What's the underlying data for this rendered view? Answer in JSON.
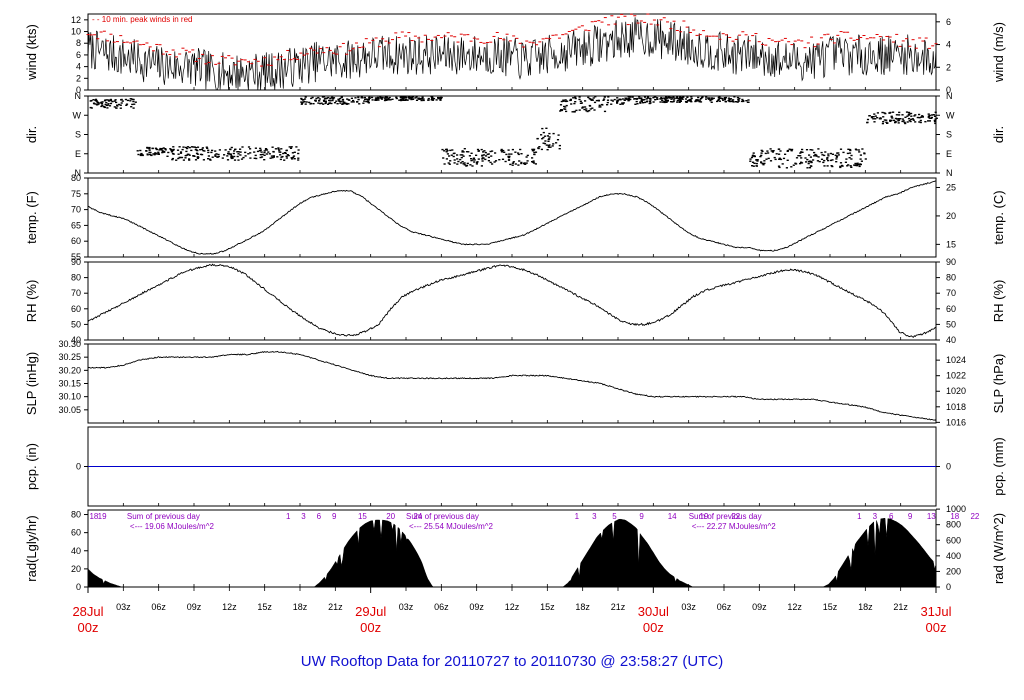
{
  "footer_title": "UW Rooftop Data for 20110727  to  20110730 @ 23:58:27  (UTC)",
  "colors": {
    "text": "#000000",
    "peak": "#e00000",
    "day_label": "#e00000",
    "footer": "#1010d0",
    "pcp_line": "#0000cc",
    "rad_annot": "#9000c0"
  },
  "x_axis": {
    "hour_labels": [
      "03z",
      "06z",
      "09z",
      "12z",
      "15z",
      "18z",
      "21z",
      "03z",
      "06z",
      "09z",
      "12z",
      "15z",
      "18z",
      "21z",
      "03z",
      "06z",
      "09z",
      "12z",
      "15z",
      "18z",
      "21z"
    ],
    "day_labels": [
      {
        "date": "28Jul",
        "hour": "00z"
      },
      {
        "date": "29Jul",
        "hour": "00z"
      },
      {
        "date": "30Jul",
        "hour": "00z"
      },
      {
        "date": "31Jul",
        "hour": "00z"
      }
    ]
  },
  "chart_data": [
    {
      "type": "line",
      "id": "wind",
      "ylabel_left": "wind (kts)",
      "ylabel_right": "wind (m/s)",
      "annotation": "10 min. peak winds in red",
      "ylim": [
        0,
        13
      ],
      "left_ticks": [
        "0",
        "2",
        "4",
        "6",
        "8",
        "10",
        "12"
      ],
      "right_ticks": [
        "0",
        "2",
        "4",
        "6"
      ],
      "series": [
        {
          "values": [
            7,
            6,
            5,
            4,
            4,
            3,
            3,
            3,
            4,
            5,
            5,
            6,
            6,
            6,
            6,
            6,
            6,
            5,
            6,
            7,
            8,
            9,
            9,
            8,
            7,
            6,
            6,
            5,
            5,
            6,
            6,
            6,
            6,
            5
          ]
        },
        {
          "values": [
            10,
            9,
            8,
            7,
            6,
            5,
            5,
            5,
            6,
            7,
            7,
            8,
            9,
            9,
            9,
            9,
            9,
            8,
            9,
            10,
            12,
            12,
            12,
            11,
            10,
            9,
            9,
            8,
            8,
            9,
            9,
            9,
            8,
            8
          ]
        }
      ]
    },
    {
      "type": "scatter",
      "id": "dir",
      "ylabel_left": "dir.",
      "ylabel_right": "dir.",
      "left_ticks": [
        "N",
        "E",
        "S",
        "W",
        "N"
      ],
      "right_ticks": [
        "N",
        "E",
        "S",
        "W",
        "N"
      ]
    },
    {
      "type": "line",
      "id": "temp",
      "ylabel_left": "temp. (F)",
      "ylabel_right": "temp. (C)",
      "ylim": [
        55,
        80
      ],
      "left_ticks": [
        "55",
        "60",
        "65",
        "70",
        "75",
        "80"
      ],
      "right_ticks": [
        "15",
        "20",
        "25"
      ],
      "series": [
        {
          "values": [
            71,
            69,
            68,
            67,
            65,
            63,
            61,
            59,
            57,
            56,
            56,
            57,
            59,
            61,
            63,
            66,
            69,
            72,
            74,
            75,
            76,
            76,
            74,
            71,
            68,
            65,
            63,
            62,
            61,
            60,
            59,
            59,
            59,
            60,
            61,
            62,
            64,
            66,
            68,
            70,
            72,
            74,
            75,
            75,
            74,
            72,
            69,
            66,
            63,
            61,
            60,
            59,
            58,
            58,
            57,
            57,
            58,
            60,
            62,
            64,
            66,
            68,
            70,
            72,
            74,
            75,
            77,
            78,
            79
          ]
        }
      ]
    },
    {
      "type": "line",
      "id": "rh",
      "ylabel_left": "RH (%)",
      "ylabel_right": "RH (%)",
      "ylim": [
        40,
        90
      ],
      "left_ticks": [
        "40",
        "50",
        "60",
        "70",
        "80",
        "90"
      ],
      "right_ticks": [
        "40",
        "50",
        "60",
        "70",
        "80",
        "90"
      ],
      "series": [
        {
          "values": [
            52,
            56,
            60,
            64,
            68,
            72,
            76,
            80,
            84,
            86,
            88,
            88,
            86,
            82,
            76,
            70,
            64,
            58,
            53,
            48,
            45,
            43,
            43,
            46,
            50,
            60,
            68,
            72,
            75,
            78,
            80,
            82,
            84,
            86,
            88,
            87,
            85,
            82,
            78,
            74,
            70,
            66,
            62,
            57,
            52,
            50,
            50,
            52,
            56,
            62,
            68,
            72,
            74,
            76,
            78,
            80,
            82,
            84,
            85,
            84,
            82,
            78,
            74,
            70,
            66,
            62,
            55,
            45,
            42,
            44,
            48
          ]
        }
      ]
    },
    {
      "type": "line",
      "id": "slp",
      "ylabel_left": "SLP (inHg)",
      "ylabel_right": "SLP (hPa)",
      "ylim": [
        30.0,
        30.3
      ],
      "left_ticks": [
        "30.05",
        "30.10",
        "30.15",
        "30.20",
        "30.25",
        "30.30"
      ],
      "right_ticks": [
        "1016",
        "1018",
        "1020",
        "1022",
        "1024"
      ],
      "series": [
        {
          "values": [
            30.21,
            30.21,
            30.22,
            30.24,
            30.25,
            30.25,
            30.25,
            30.25,
            30.26,
            30.26,
            30.27,
            30.27,
            30.26,
            30.24,
            30.22,
            30.2,
            30.18,
            30.17,
            30.17,
            30.17,
            30.17,
            30.17,
            30.17,
            30.17,
            30.18,
            30.18,
            30.18,
            30.17,
            30.16,
            30.15,
            30.13,
            30.11,
            30.1,
            30.1,
            30.1,
            30.1,
            30.1,
            30.1,
            30.09,
            30.09,
            30.09,
            30.09,
            30.08,
            30.07,
            30.06,
            30.04,
            30.03,
            30.02,
            30.01
          ]
        }
      ]
    },
    {
      "type": "line",
      "id": "pcp",
      "ylabel_left": "pcp. (in)",
      "ylabel_right": "pcp. (mm)",
      "ylim": [
        -1,
        1
      ],
      "left_ticks": [
        "0"
      ],
      "right_ticks": [
        "0"
      ],
      "series": [
        {
          "values": [
            0,
            0
          ]
        }
      ]
    },
    {
      "type": "area",
      "id": "rad",
      "ylabel_left": "rad(Lgly/hr)",
      "ylabel_right": "rad (W/m^2)",
      "ylim": [
        0,
        85
      ],
      "left_ticks": [
        "0",
        "20",
        "40",
        "60",
        "80"
      ],
      "right_ticks": [
        "0",
        "200",
        "400",
        "600",
        "800",
        "1000"
      ],
      "hour_marks": [
        {
          "text": "18",
          "hour": 0.5
        },
        {
          "text": "19",
          "hour": 1.2
        },
        {
          "text": "1",
          "hour": 17.0
        },
        {
          "text": "3",
          "hour": 18.3
        },
        {
          "text": "6",
          "hour": 19.6
        },
        {
          "text": "9",
          "hour": 20.9
        },
        {
          "text": "15",
          "hour": 23.3
        },
        {
          "text": "20",
          "hour": 25.7
        },
        {
          "text": "24",
          "hour": 28.0
        },
        {
          "text": "1",
          "hour": 41.5
        },
        {
          "text": "3",
          "hour": 43.0
        },
        {
          "text": "5",
          "hour": 44.7
        },
        {
          "text": "9",
          "hour": 47.0
        },
        {
          "text": "14",
          "hour": 49.6
        },
        {
          "text": "19",
          "hour": 52.3
        },
        {
          "text": "22",
          "hour": 55.0
        },
        {
          "text": "1",
          "hour": 65.5
        },
        {
          "text": "3",
          "hour": 66.8
        },
        {
          "text": "6",
          "hour": 68.2
        },
        {
          "text": "9",
          "hour": 69.8
        },
        {
          "text": "13",
          "hour": 71.6
        },
        {
          "text": "18",
          "hour": 73.6
        },
        {
          "text": "22",
          "hour": 75.3
        }
      ],
      "annotations": [
        {
          "line1": "Sum of previous day",
          "line2": "<--- 19.06 MJoules/m^2",
          "hour": 3.3
        },
        {
          "line1": "Sum of previous day",
          "line2": "<--- 25.54 MJoules/m^2",
          "hour": 27.0
        },
        {
          "line1": "Sum of previous day",
          "line2": "<--- 22.27 MJoules/m^2",
          "hour": 51.0
        }
      ],
      "series": [
        {
          "values": [
            20,
            14,
            10,
            7,
            4,
            2,
            0,
            0,
            0,
            0,
            0,
            0,
            0,
            0,
            0,
            0,
            0,
            0,
            0,
            0,
            0,
            0,
            0,
            0,
            0,
            0,
            0,
            0,
            0,
            0,
            0,
            0,
            0,
            0,
            0,
            0,
            0,
            0,
            0,
            0,
            0,
            5,
            12,
            20,
            30,
            40,
            50,
            58,
            65,
            70,
            73,
            74,
            74,
            73,
            70,
            65,
            58,
            50,
            40,
            28,
            10,
            0,
            0,
            0,
            0,
            0,
            0,
            0,
            0,
            0,
            0,
            0,
            0,
            0,
            0,
            0,
            0,
            0,
            0,
            0,
            0,
            0,
            0,
            0,
            0,
            5,
            15,
            25,
            35,
            45,
            55,
            62,
            68,
            72,
            75,
            74,
            70,
            65,
            56,
            48,
            38,
            28,
            20,
            14,
            10,
            6,
            3,
            0,
            0,
            0,
            0,
            0,
            0,
            0,
            0,
            0,
            0,
            0,
            0,
            0,
            0,
            0,
            0,
            0,
            0,
            0,
            0,
            0,
            0,
            0,
            0,
            3,
            10,
            20,
            30,
            40,
            50,
            58,
            66,
            72,
            75,
            76,
            75,
            72,
            68,
            62,
            55,
            48,
            40,
            32,
            25
          ]
        }
      ]
    }
  ]
}
